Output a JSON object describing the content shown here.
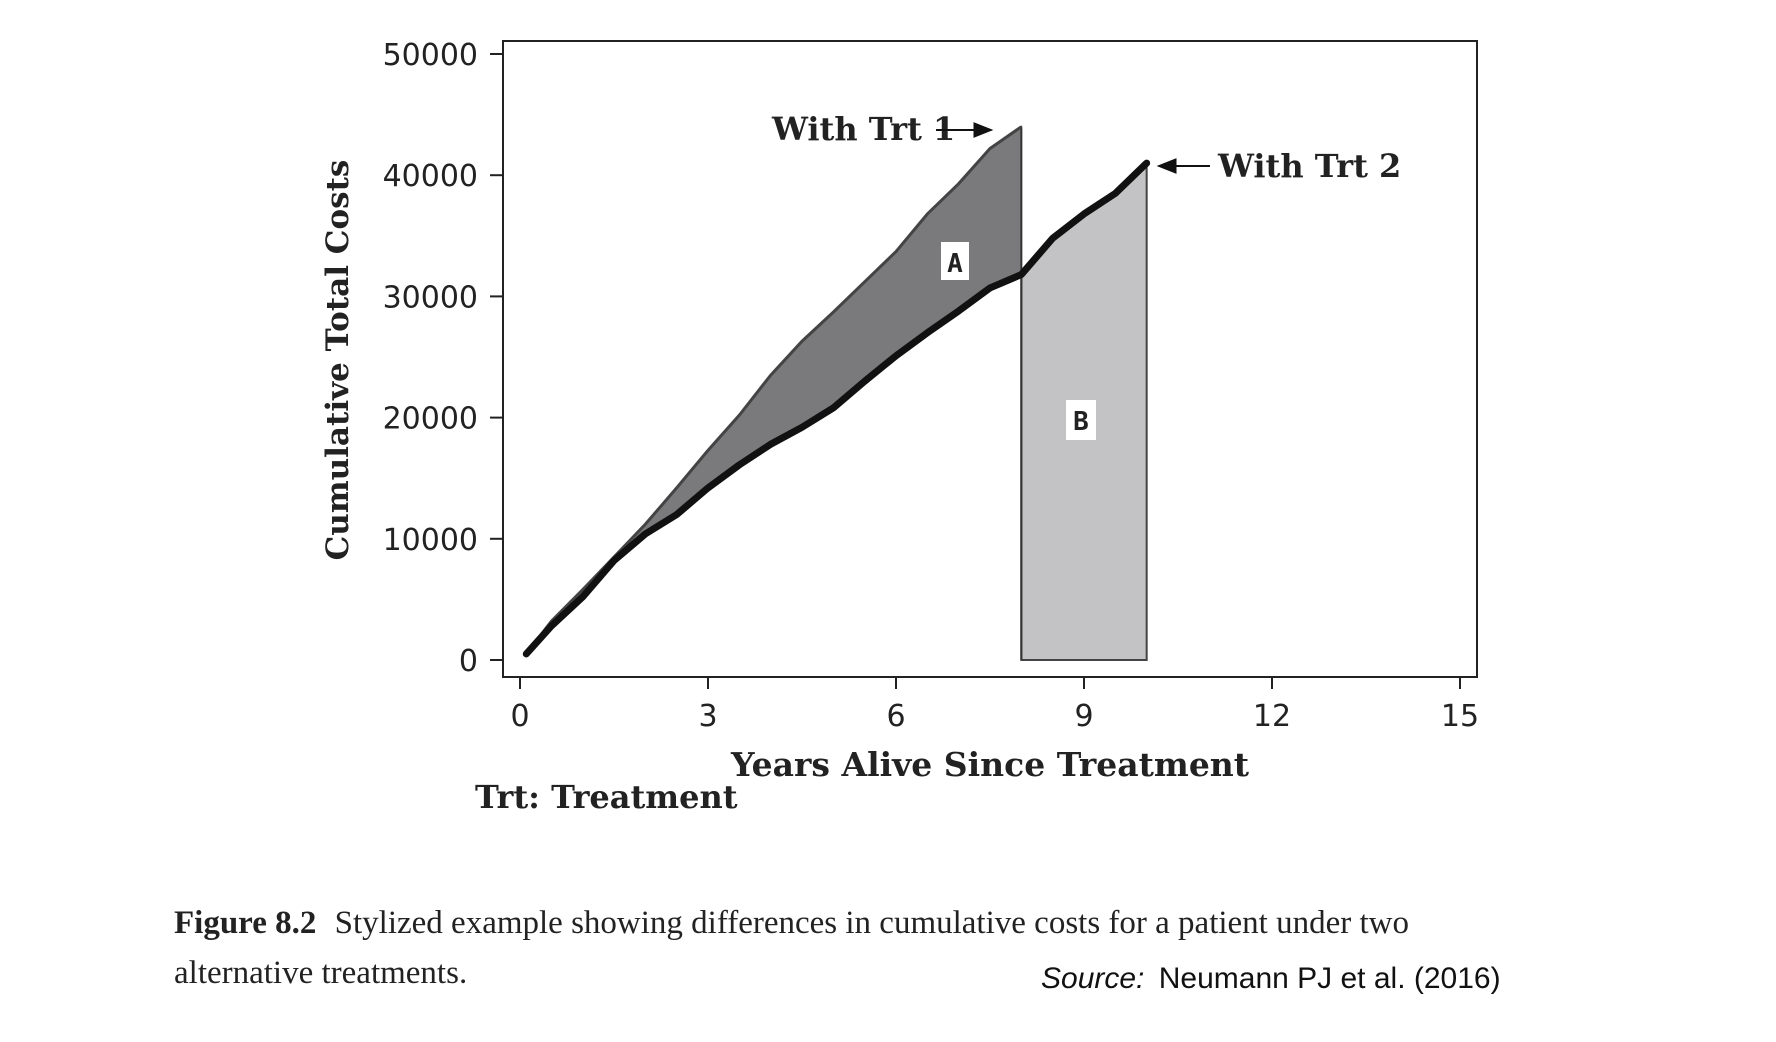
{
  "chart_data": {
    "type": "line",
    "xlabel": "Years Alive Since Treatment",
    "ylabel": "Cumulative Total Costs",
    "xlim": [
      0,
      15
    ],
    "ylim": [
      0,
      50000
    ],
    "xticks": [
      "0",
      "3",
      "6",
      "9",
      "12",
      "15"
    ],
    "yticks": [
      "0",
      "10000",
      "20000",
      "30000",
      "40000",
      "50000"
    ],
    "grid": false,
    "series": [
      {
        "name": "With Trt 1",
        "x": [
          0.1,
          0.5,
          1.0,
          1.5,
          2.0,
          2.5,
          3.0,
          3.5,
          4.0,
          4.5,
          5.0,
          5.5,
          6.0,
          6.5,
          7.0,
          7.5,
          8.0
        ],
        "y": [
          500,
          3200,
          5800,
          8500,
          11200,
          14200,
          17300,
          20200,
          23500,
          26300,
          28700,
          31200,
          33700,
          36800,
          39300,
          42200,
          44000
        ]
      },
      {
        "name": "With Trt 2",
        "x": [
          0.1,
          0.5,
          1.0,
          1.5,
          2.0,
          2.5,
          3.0,
          3.5,
          4.0,
          4.5,
          5.0,
          5.5,
          6.0,
          6.5,
          7.0,
          7.5,
          8.0,
          8.5,
          9.0,
          9.5,
          10.0
        ],
        "y": [
          500,
          2800,
          5200,
          8200,
          10400,
          12000,
          14200,
          16100,
          17800,
          19200,
          20800,
          23000,
          25100,
          27000,
          28800,
          30700,
          31800,
          34800,
          36800,
          38500,
          41000
        ]
      }
    ],
    "annotations": {
      "trt1_label": "With Trt 1",
      "trt2_label": "With Trt 2",
      "region_a": "A",
      "region_b": "B",
      "trt_note": "Trt: Treatment"
    },
    "colors": {
      "region_a": "#7a7a7c",
      "region_b": "#c3c3c5",
      "line": "#111111"
    }
  },
  "caption": {
    "label": "Figure 8.2",
    "text": "Stylized example showing differences in cumulative costs for a patient under two alternative treatments."
  },
  "source": {
    "label": "Source:",
    "text": "Neumann PJ et al. (2016)"
  }
}
